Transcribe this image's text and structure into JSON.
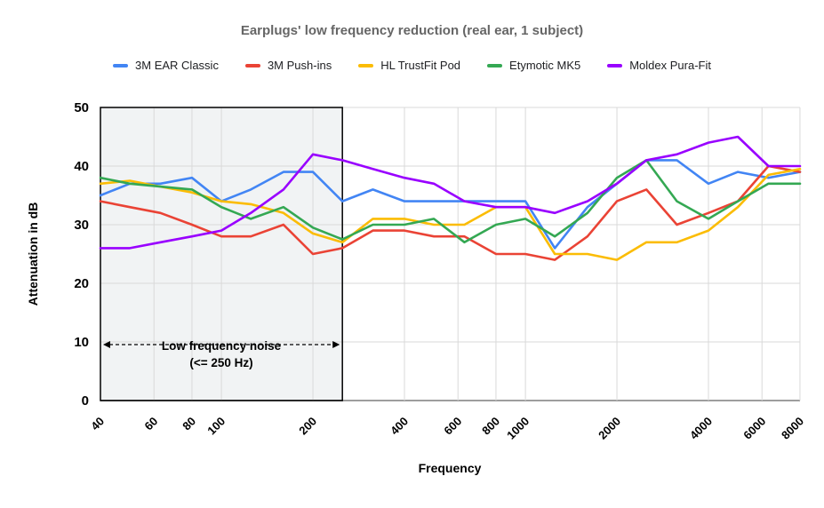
{
  "title": "Earplugs' low frequency reduction (real ear, 1 subject)",
  "legend": [
    {
      "label": "3M EAR Classic",
      "color": "#4285F4"
    },
    {
      "label": "3M Push-ins",
      "color": "#EA4335"
    },
    {
      "label": "HL TrustFit Pod",
      "color": "#FBBC04"
    },
    {
      "label": "Etymotic MK5",
      "color": "#34A853"
    },
    {
      "label": "Moldex Pura-Fit",
      "color": "#9900FF"
    }
  ],
  "axes": {
    "y": {
      "title": "Attenuation in dB",
      "min": 0,
      "max": 50,
      "ticks": [
        0,
        10,
        20,
        30,
        40,
        50
      ]
    },
    "x": {
      "title": "Frequency",
      "scale": "log",
      "min": 40,
      "max": 8000,
      "ticks": [
        40,
        60,
        80,
        100,
        200,
        400,
        600,
        800,
        1000,
        2000,
        4000,
        6000,
        8000
      ]
    }
  },
  "annotation": {
    "line1": "Low frequency noise",
    "line2": "(<= 250 Hz)",
    "range_hz": [
      40,
      250
    ]
  },
  "chart_data": {
    "type": "line",
    "title": "Earplugs' low frequency reduction (real ear, 1 subject)",
    "xlabel": "Frequency",
    "ylabel": "Attenuation in dB",
    "x_scale": "log",
    "ylim": [
      0,
      50
    ],
    "grid": true,
    "legend_position": "top",
    "x": [
      40,
      50,
      63,
      80,
      100,
      125,
      160,
      200,
      250,
      315,
      400,
      500,
      630,
      800,
      1000,
      1250,
      1600,
      2000,
      2500,
      3150,
      4000,
      5000,
      6300,
      8000
    ],
    "series": [
      {
        "name": "3M EAR Classic",
        "color": "#4285F4",
        "values": [
          35,
          37,
          37,
          38,
          34,
          36,
          39,
          39,
          34,
          36,
          34,
          34,
          34,
          34,
          34,
          26,
          33,
          37,
          41,
          41,
          37,
          39,
          38,
          39
        ]
      },
      {
        "name": "3M Push-ins",
        "color": "#EA4335",
        "values": [
          34,
          33,
          32,
          30,
          28,
          28,
          30,
          25,
          26,
          29,
          29,
          28,
          28,
          25,
          25,
          24,
          28,
          34,
          36,
          30,
          32,
          34,
          40,
          39
        ]
      },
      {
        "name": "HL TrustFit Pod",
        "color": "#FBBC04",
        "values": [
          37,
          37.5,
          36.5,
          35.5,
          34,
          33.5,
          32,
          28.5,
          27,
          31,
          31,
          30,
          30,
          33,
          33,
          25,
          25,
          24,
          27,
          27,
          29,
          33,
          38.5,
          39.5
        ]
      },
      {
        "name": "Etymotic MK5",
        "color": "#34A853",
        "values": [
          38,
          37,
          36.5,
          36,
          33,
          31,
          33,
          29.5,
          27.5,
          30,
          30,
          31,
          27,
          30,
          31,
          28,
          32,
          38,
          41,
          34,
          31,
          34,
          37,
          37
        ]
      },
      {
        "name": "Moldex Pura-Fit",
        "color": "#9900FF",
        "values": [
          26,
          26,
          27,
          28,
          29,
          32,
          36,
          42,
          41,
          39.5,
          38,
          37,
          34,
          33,
          33,
          32,
          34,
          37,
          41,
          42,
          44,
          45,
          40,
          40
        ]
      }
    ],
    "shaded_region": {
      "label": "Low frequency noise (<= 250 Hz)",
      "x_range": [
        40,
        250
      ]
    }
  }
}
